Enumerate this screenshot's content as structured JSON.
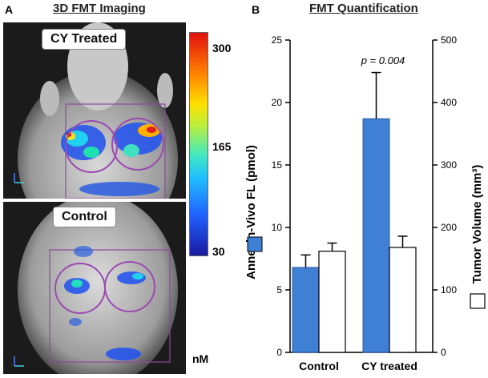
{
  "panel_a": {
    "letter": "A",
    "title": "3D FMT Imaging",
    "top_label": "CY Treated",
    "bottom_label": "Control",
    "colorbar": {
      "ticks": [
        "300",
        "165",
        "30"
      ],
      "unit": "nM"
    }
  },
  "panel_b": {
    "letter": "B",
    "title": "FMT Quantification"
  },
  "colors": {
    "blue_bar": "#3f7fd4",
    "white_bar": "#ffffff"
  },
  "chart_data": {
    "type": "bar",
    "title": "FMT Quantification",
    "categories": [
      "Control",
      "CY treated"
    ],
    "series": [
      {
        "name": "Annexin-Vivo FL (pmol)",
        "axis": "left",
        "values": [
          6.8,
          18.7
        ],
        "errors": [
          1.0,
          3.7
        ]
      },
      {
        "name": "Tumor Volume (mm³)",
        "axis": "right",
        "values": [
          162,
          168
        ],
        "errors": [
          13,
          18
        ]
      }
    ],
    "ylabel": "Annexin-Vivo FL (pmol)",
    "y2label": "Tumor Volume (mm³)",
    "ylim": [
      0,
      25
    ],
    "y2lim": [
      0,
      500
    ],
    "yticks": [
      "0",
      "5",
      "10",
      "15",
      "20",
      "25"
    ],
    "y2ticks": [
      "0",
      "100",
      "200",
      "300",
      "400",
      "500"
    ],
    "annotation": "p = 0.004"
  }
}
